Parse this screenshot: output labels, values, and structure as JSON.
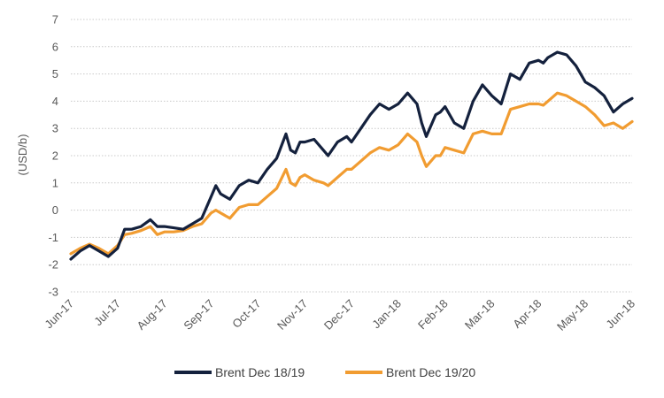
{
  "chart_data": {
    "type": "line",
    "title": "",
    "xlabel": "",
    "ylabel": "(USD/b)",
    "ylim": [
      -3,
      7
    ],
    "yticks": [
      -3,
      -2,
      -1,
      0,
      1,
      2,
      3,
      4,
      5,
      6,
      7
    ],
    "grid": true,
    "legend_position": "bottom-center",
    "x_tick_labels": [
      "Jun-17",
      "Jul-17",
      "Aug-17",
      "Sep-17",
      "Oct-17",
      "Nov-17",
      "Dec-17",
      "Jan-18",
      "Feb-18",
      "Mar-18",
      "Apr-18",
      "May-18",
      "Jun-18"
    ],
    "series": [
      {
        "name": "Brent Dec 18/19",
        "color": "#14213d",
        "x": [
          0,
          0.2,
          0.4,
          0.6,
          0.8,
          1.0,
          1.15,
          1.3,
          1.5,
          1.7,
          1.85,
          2.0,
          2.2,
          2.4,
          2.6,
          2.8,
          3.0,
          3.1,
          3.2,
          3.4,
          3.6,
          3.8,
          4.0,
          4.2,
          4.4,
          4.6,
          4.7,
          4.8,
          4.9,
          5.0,
          5.2,
          5.4,
          5.5,
          5.7,
          5.9,
          6.0,
          6.2,
          6.4,
          6.6,
          6.8,
          7.0,
          7.2,
          7.4,
          7.5,
          7.6,
          7.8,
          7.9,
          8.0,
          8.2,
          8.4,
          8.6,
          8.8,
          9.0,
          9.2,
          9.4,
          9.6,
          9.8,
          10.0,
          10.1,
          10.2,
          10.4,
          10.6,
          10.8,
          11.0,
          11.2,
          11.4,
          11.6,
          11.8,
          12.0
        ],
        "values": [
          -1.8,
          -1.5,
          -1.3,
          -1.5,
          -1.7,
          -1.4,
          -0.7,
          -0.7,
          -0.6,
          -0.35,
          -0.6,
          -0.6,
          -0.65,
          -0.7,
          -0.5,
          -0.3,
          0.5,
          0.9,
          0.6,
          0.4,
          0.9,
          1.1,
          1.0,
          1.5,
          1.9,
          2.8,
          2.2,
          2.1,
          2.5,
          2.5,
          2.6,
          2.2,
          2.0,
          2.5,
          2.7,
          2.5,
          3.0,
          3.5,
          3.9,
          3.7,
          3.9,
          4.3,
          3.9,
          3.2,
          2.7,
          3.5,
          3.6,
          3.8,
          3.2,
          3.0,
          4.0,
          4.6,
          4.2,
          3.9,
          5.0,
          4.8,
          5.4,
          5.5,
          5.4,
          5.6,
          5.8,
          5.7,
          5.3,
          4.7,
          4.5,
          4.2,
          3.6,
          3.9,
          4.1
        ]
      },
      {
        "name": "Brent Dec 19/20",
        "color": "#f19c31",
        "x": [
          0,
          0.2,
          0.4,
          0.6,
          0.8,
          1.0,
          1.15,
          1.3,
          1.5,
          1.7,
          1.85,
          2.0,
          2.2,
          2.4,
          2.6,
          2.8,
          3.0,
          3.1,
          3.2,
          3.4,
          3.6,
          3.8,
          4.0,
          4.2,
          4.4,
          4.6,
          4.7,
          4.8,
          4.9,
          5.0,
          5.2,
          5.4,
          5.5,
          5.7,
          5.9,
          6.0,
          6.2,
          6.4,
          6.6,
          6.8,
          7.0,
          7.2,
          7.4,
          7.5,
          7.6,
          7.8,
          7.9,
          8.0,
          8.2,
          8.4,
          8.6,
          8.8,
          9.0,
          9.2,
          9.4,
          9.6,
          9.8,
          10.0,
          10.1,
          10.2,
          10.4,
          10.6,
          10.8,
          11.0,
          11.2,
          11.4,
          11.6,
          11.8,
          12.0
        ],
        "values": [
          -1.6,
          -1.4,
          -1.25,
          -1.4,
          -1.6,
          -1.3,
          -0.9,
          -0.85,
          -0.75,
          -0.6,
          -0.9,
          -0.8,
          -0.8,
          -0.75,
          -0.6,
          -0.5,
          -0.1,
          0.0,
          -0.1,
          -0.3,
          0.1,
          0.2,
          0.2,
          0.5,
          0.8,
          1.5,
          1.0,
          0.9,
          1.2,
          1.3,
          1.1,
          1.0,
          0.9,
          1.2,
          1.5,
          1.5,
          1.8,
          2.1,
          2.3,
          2.2,
          2.4,
          2.8,
          2.5,
          2.0,
          1.6,
          2.0,
          2.0,
          2.3,
          2.2,
          2.1,
          2.8,
          2.9,
          2.8,
          2.8,
          3.7,
          3.8,
          3.9,
          3.9,
          3.85,
          4.0,
          4.3,
          4.2,
          4.0,
          3.8,
          3.5,
          3.1,
          3.2,
          3.0,
          3.25
        ]
      }
    ]
  }
}
